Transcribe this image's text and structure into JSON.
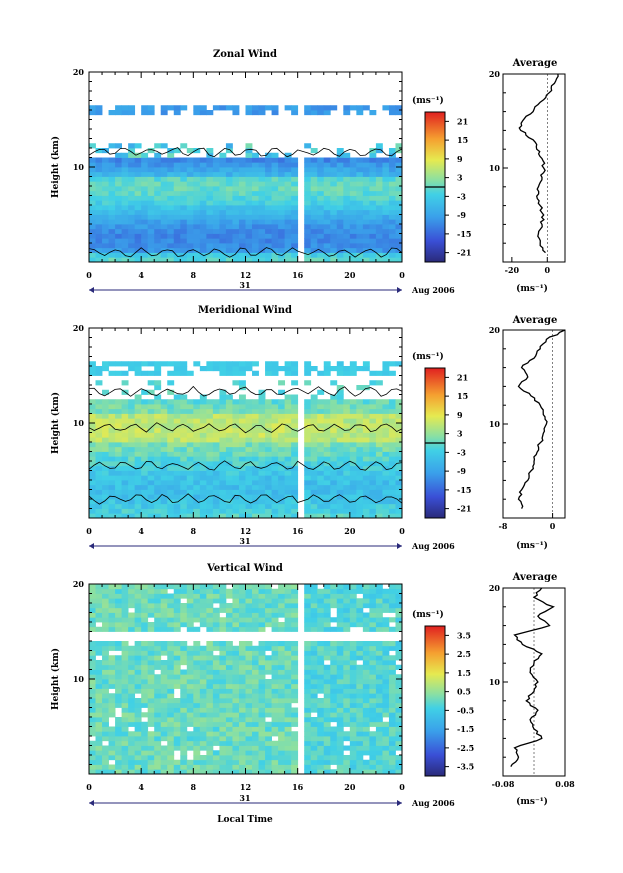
{
  "figure": {
    "xlabel": "Local Time",
    "date_label": "Aug 2006",
    "day_label": "31"
  },
  "chart_data": [
    {
      "type": "heatmap",
      "title": "Zonal Wind",
      "ylabel": "Height (km)",
      "xlabel": "Local Time",
      "x_ticks": [
        "0",
        "4",
        "8",
        "12",
        "16",
        "20",
        "0"
      ],
      "x_range": [
        0,
        24
      ],
      "y_ticks": [
        "20",
        "10"
      ],
      "y_range": [
        0,
        20
      ],
      "data_gap": [
        16,
        16.6
      ],
      "colorbar": {
        "unit": "(ms⁻¹)",
        "ticks": [
          "21",
          "15",
          "9",
          "3",
          "-3",
          "-9",
          "-15",
          "-21"
        ],
        "range": [
          -24,
          24
        ],
        "zero_contour": true
      },
      "side_profile": {
        "title": "Average",
        "xlabel": "(ms⁻¹)",
        "x_ticks": [
          "-20",
          "0"
        ],
        "x_range": [
          -25,
          10
        ],
        "y_ticks": [
          "20",
          "10"
        ],
        "heights": [
          1,
          2,
          3,
          4,
          5,
          6,
          7,
          8,
          9,
          10,
          11,
          12,
          13,
          14,
          15,
          16,
          17,
          18,
          19,
          20
        ],
        "values": [
          -1,
          -4,
          -5,
          -3,
          -2,
          -4,
          -6,
          -5,
          -3,
          -2,
          -3,
          -6,
          -8,
          -15,
          -14,
          -8,
          -4,
          1,
          4,
          6
        ]
      }
    },
    {
      "type": "heatmap",
      "title": "Meridional Wind",
      "ylabel": "Height (km)",
      "xlabel": "Local Time",
      "x_ticks": [
        "0",
        "4",
        "8",
        "12",
        "16",
        "20",
        "0"
      ],
      "x_range": [
        0,
        24
      ],
      "y_ticks": [
        "20",
        "10"
      ],
      "y_range": [
        0,
        20
      ],
      "data_gap": [
        16,
        16.6
      ],
      "colorbar": {
        "unit": "(ms⁻¹)",
        "ticks": [
          "21",
          "15",
          "9",
          "3",
          "-3",
          "-9",
          "-15",
          "-21"
        ],
        "range": [
          -24,
          24
        ],
        "zero_contour": true
      },
      "side_profile": {
        "title": "Average",
        "xlabel": "(ms⁻¹)",
        "x_ticks": [
          "-8",
          "0"
        ],
        "x_range": [
          -8,
          2
        ],
        "y_ticks": [
          "20",
          "10"
        ],
        "heights": [
          1,
          2,
          3,
          4,
          5,
          6,
          7,
          8,
          9,
          10,
          11,
          12,
          13,
          14,
          15,
          16,
          17,
          18,
          19,
          20
        ],
        "values": [
          -5,
          -5.5,
          -5,
          -4,
          -3.5,
          -3,
          -2.5,
          -2,
          -1.5,
          -1,
          -1.5,
          -2,
          -3.5,
          -5.5,
          -4,
          -5,
          -3,
          -2,
          -1,
          2
        ]
      }
    },
    {
      "type": "heatmap",
      "title": "Vertical Wind",
      "ylabel": "Height (km)",
      "xlabel": "Local Time",
      "x_ticks": [
        "0",
        "4",
        "8",
        "12",
        "16",
        "20",
        "0"
      ],
      "x_range": [
        0,
        24
      ],
      "y_ticks": [
        "20",
        "10"
      ],
      "y_range": [
        0,
        20
      ],
      "data_gap": [
        16,
        16.6
      ],
      "colorbar": {
        "unit": "(ms⁻¹)",
        "ticks": [
          "3.5",
          "2.5",
          "1.5",
          "0.5",
          "-0.5",
          "-1.5",
          "-2.5",
          "-3.5"
        ],
        "range": [
          -4,
          4
        ],
        "zero_contour": false
      },
      "side_profile": {
        "title": "Average",
        "xlabel": "(ms⁻¹)",
        "x_ticks": [
          "-0.08",
          "0.08"
        ],
        "x_range": [
          -0.08,
          0.08
        ],
        "y_ticks": [
          "20",
          "10"
        ],
        "heights": [
          1,
          2,
          3,
          4,
          5,
          6,
          7,
          8,
          9,
          10,
          11,
          12,
          13,
          14,
          15,
          16,
          17,
          18,
          19,
          20
        ],
        "values": [
          -0.06,
          -0.04,
          -0.05,
          0.02,
          0.0,
          -0.01,
          0.01,
          -0.02,
          0.0,
          0.01,
          -0.01,
          0.0,
          0.02,
          -0.03,
          -0.05,
          0.04,
          0.01,
          0.05,
          0.0,
          0.02
        ]
      }
    }
  ]
}
